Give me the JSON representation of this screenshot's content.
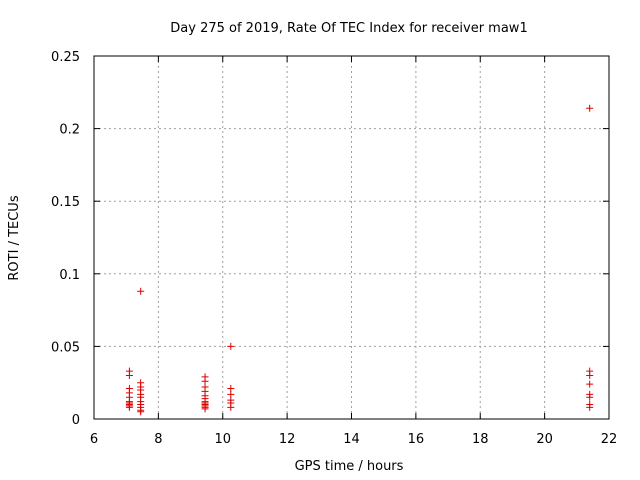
{
  "chart_data": {
    "type": "scatter",
    "title": "Day 275 of 2019, Rate Of TEC Index for receiver maw1",
    "xlabel": "GPS time / hours",
    "ylabel": "ROTI / TECUs",
    "xlim": [
      6,
      22
    ],
    "ylim": [
      0,
      0.25
    ],
    "grid": true,
    "x_ticks": [
      6,
      8,
      10,
      12,
      14,
      16,
      18,
      20,
      22
    ],
    "x_tick_labels": [
      "6",
      "8",
      "10",
      "12",
      "14",
      "16",
      "18",
      "20",
      "22"
    ],
    "y_ticks": [
      0,
      0.05,
      0.1,
      0.15,
      0.2,
      0.25
    ],
    "y_tick_labels": [
      "0",
      "0.05",
      "0.1",
      "0.15",
      "0.2",
      "0.25"
    ],
    "marker": "+",
    "color": "#dd0000",
    "series": [
      {
        "name": "ROTI",
        "points": [
          [
            7.1,
            0.033
          ],
          [
            7.1,
            0.03
          ],
          [
            7.1,
            0.021
          ],
          [
            7.1,
            0.018
          ],
          [
            7.1,
            0.015
          ],
          [
            7.1,
            0.012
          ],
          [
            7.1,
            0.011
          ],
          [
            7.1,
            0.01
          ],
          [
            7.1,
            0.009
          ],
          [
            7.1,
            0.008
          ],
          [
            7.45,
            0.088
          ],
          [
            7.45,
            0.025
          ],
          [
            7.45,
            0.022
          ],
          [
            7.45,
            0.02
          ],
          [
            7.45,
            0.017
          ],
          [
            7.45,
            0.015
          ],
          [
            7.45,
            0.012
          ],
          [
            7.45,
            0.01
          ],
          [
            7.45,
            0.008
          ],
          [
            7.45,
            0.006
          ],
          [
            7.45,
            0.005
          ],
          [
            9.45,
            0.029
          ],
          [
            9.45,
            0.026
          ],
          [
            9.45,
            0.022
          ],
          [
            9.45,
            0.019
          ],
          [
            9.45,
            0.016
          ],
          [
            9.45,
            0.014
          ],
          [
            9.45,
            0.012
          ],
          [
            9.45,
            0.011
          ],
          [
            9.45,
            0.01
          ],
          [
            9.45,
            0.009
          ],
          [
            9.45,
            0.008
          ],
          [
            9.45,
            0.007
          ],
          [
            10.25,
            0.05
          ],
          [
            10.25,
            0.021
          ],
          [
            10.25,
            0.017
          ],
          [
            10.25,
            0.013
          ],
          [
            10.25,
            0.011
          ],
          [
            10.25,
            0.008
          ],
          [
            21.4,
            0.214
          ],
          [
            21.4,
            0.033
          ],
          [
            21.4,
            0.03
          ],
          [
            21.4,
            0.024
          ],
          [
            21.4,
            0.017
          ],
          [
            21.4,
            0.015
          ],
          [
            21.4,
            0.01
          ],
          [
            21.4,
            0.008
          ]
        ]
      }
    ]
  }
}
